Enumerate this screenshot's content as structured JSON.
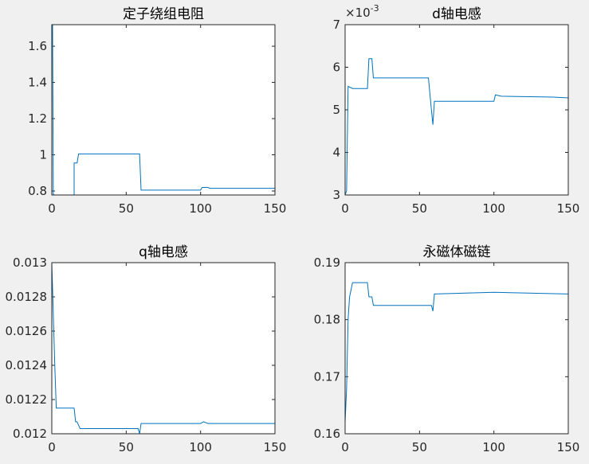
{
  "chart_data": [
    {
      "type": "line",
      "title": "定子绕组电阻",
      "color": "#0072bd",
      "x": [
        0,
        0.5,
        1,
        2,
        15,
        15,
        17,
        18,
        59,
        60,
        100,
        101,
        105,
        106,
        150
      ],
      "values": [
        1.65,
        1.72,
        0.78,
        0.778,
        0.778,
        0.955,
        0.955,
        1.005,
        1.005,
        0.805,
        0.805,
        0.82,
        0.82,
        0.815,
        0.815
      ],
      "xlim": [
        0,
        150
      ],
      "xticks": [
        0,
        50,
        100,
        150
      ],
      "ylim": [
        0.778,
        1.719
      ],
      "yticks": [
        0.8,
        1,
        1.2,
        1.4,
        1.6
      ]
    },
    {
      "type": "line",
      "title": "d轴电感",
      "color": "#0072bd",
      "y_scale_base": "×10",
      "y_scale_exponent": "-3",
      "x": [
        0,
        1,
        2,
        5,
        15,
        16,
        18,
        19,
        56,
        58,
        59,
        60,
        100,
        101,
        105,
        140,
        150
      ],
      "values": [
        3,
        3.1,
        5.55,
        5.5,
        5.5,
        6.2,
        6.2,
        5.75,
        5.75,
        5.0,
        4.65,
        5.2,
        5.2,
        5.35,
        5.32,
        5.3,
        5.28
      ],
      "xlim": [
        0,
        150
      ],
      "xticks": [
        0,
        50,
        100,
        150
      ],
      "ylim": [
        3,
        7
      ],
      "yticks": [
        3,
        4,
        5,
        6,
        7
      ]
    },
    {
      "type": "line",
      "title": "q轴电感",
      "color": "#0072bd",
      "x": [
        0,
        1,
        2,
        3,
        15,
        16,
        17,
        19,
        58,
        59,
        60,
        100,
        102,
        105,
        150
      ],
      "values": [
        0.013,
        0.0127,
        0.0124,
        0.01215,
        0.01215,
        0.01207,
        0.01207,
        0.01203,
        0.01203,
        0.012,
        0.01206,
        0.01206,
        0.01207,
        0.01206,
        0.01206
      ],
      "xlim": [
        0,
        150
      ],
      "xticks": [
        0,
        50,
        100,
        150
      ],
      "ylim": [
        0.012,
        0.013
      ],
      "yticks": [
        0.012,
        0.0122,
        0.0124,
        0.0126,
        0.0128,
        0.013
      ]
    },
    {
      "type": "line",
      "title": "永磁体磁链",
      "color": "#0072bd",
      "x": [
        0,
        1,
        2,
        3,
        5,
        15,
        16,
        18,
        19,
        58,
        59,
        60,
        100,
        150
      ],
      "values": [
        0.162,
        0.168,
        0.18,
        0.184,
        0.1865,
        0.1865,
        0.184,
        0.184,
        0.1825,
        0.1825,
        0.1815,
        0.1845,
        0.1848,
        0.1845
      ],
      "xlim": [
        0,
        150
      ],
      "xticks": [
        0,
        50,
        100,
        150
      ],
      "ylim": [
        0.16,
        0.19
      ],
      "yticks": [
        0.16,
        0.17,
        0.18,
        0.19
      ]
    }
  ]
}
